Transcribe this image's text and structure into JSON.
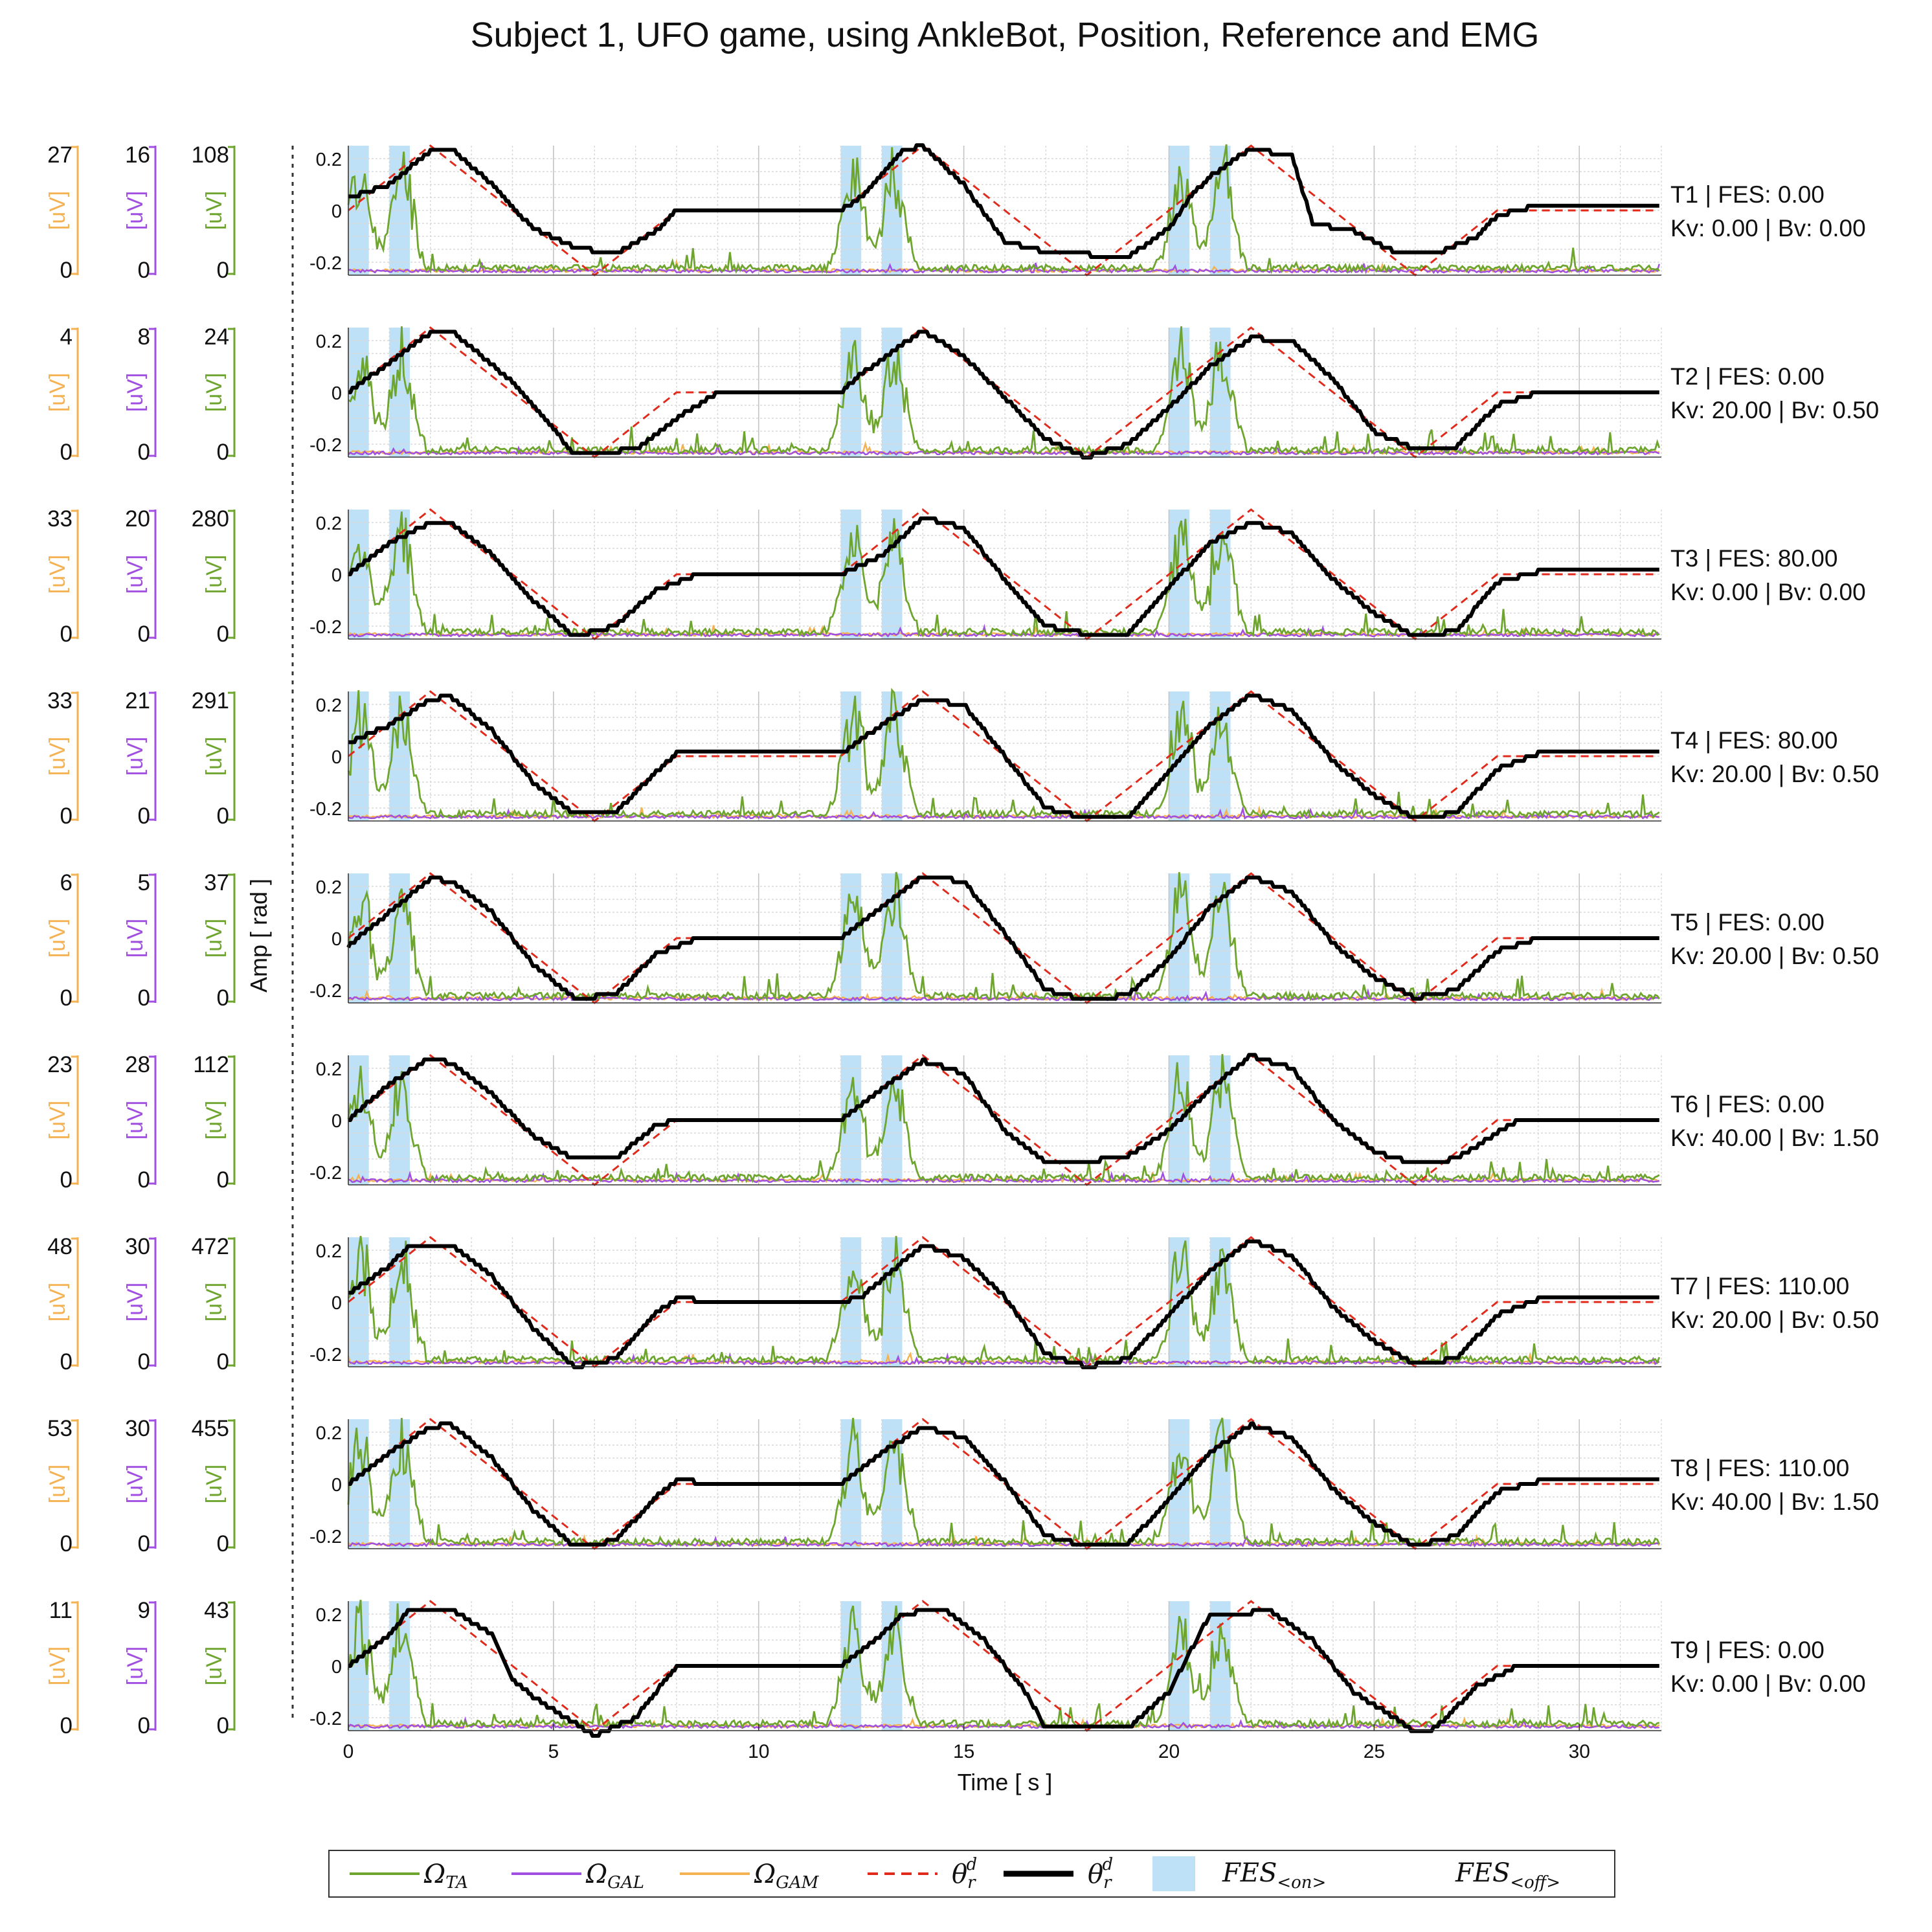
{
  "title": "Subject 1, UFO game, using AnkleBot, Position, Reference and EMG",
  "ylabel": "Amp [ rad ]",
  "xlabel": "Time [ s ]",
  "colors": {
    "ta": "#6ea52e",
    "gal": "#a14fe0",
    "gam": "#f5b253",
    "ref": "#e02a1c",
    "pos": "#000000",
    "fes": "#bfe1f8"
  },
  "chart_data": {
    "type": "line",
    "xlim": [
      0,
      32
    ],
    "ylim": [
      -0.25,
      0.25
    ],
    "xticks": [
      0,
      5,
      10,
      15,
      20,
      25,
      30
    ],
    "xtick_labels": [
      "0",
      "5",
      "10",
      "15",
      "20",
      "25",
      "30"
    ],
    "yticks": [
      0.2,
      0,
      -0.2
    ],
    "ytick_labels": [
      "0.2",
      "0",
      "-0.2"
    ],
    "grid": true,
    "legend_position": "bottom",
    "fes_on_intervals": [
      [
        0,
        0.5
      ],
      [
        1,
        1.5
      ],
      [
        12,
        12.5
      ],
      [
        13,
        13.5
      ],
      [
        20,
        20.5
      ],
      [
        21,
        21.5
      ]
    ],
    "position_keypoints": {
      "note": "approximate trajectories of the measured position",
      "T1": [
        [
          0,
          0.05
        ],
        [
          1,
          0.1
        ],
        [
          2,
          0.23
        ],
        [
          2.5,
          0.24
        ],
        [
          3.5,
          0.1
        ],
        [
          4.5,
          -0.07
        ],
        [
          5.5,
          -0.14
        ],
        [
          6.5,
          -0.17
        ],
        [
          7.5,
          -0.08
        ],
        [
          8,
          0
        ],
        [
          12,
          0
        ],
        [
          12.5,
          0.05
        ],
        [
          13.5,
          0.23
        ],
        [
          14,
          0.25
        ],
        [
          15,
          0.1
        ],
        [
          16,
          -0.12
        ],
        [
          17,
          -0.16
        ],
        [
          19,
          -0.18
        ],
        [
          20,
          -0.07
        ],
        [
          20.5,
          0.05
        ],
        [
          21,
          0.13
        ],
        [
          22,
          0.24
        ],
        [
          23,
          0.21
        ],
        [
          23.5,
          -0.05
        ],
        [
          24.5,
          -0.08
        ],
        [
          25.5,
          -0.16
        ],
        [
          26.5,
          -0.17
        ],
        [
          27.5,
          -0.1
        ],
        [
          28,
          -0.02
        ],
        [
          29,
          0.02
        ],
        [
          32,
          0.02
        ]
      ],
      "T2": [
        [
          0,
          0
        ],
        [
          2,
          0.23
        ],
        [
          2.5,
          0.24
        ],
        [
          4,
          0.04
        ],
        [
          5,
          -0.14
        ],
        [
          5.5,
          -0.24
        ],
        [
          7,
          -0.22
        ],
        [
          8,
          -0.1
        ],
        [
          9,
          0
        ],
        [
          10,
          0
        ],
        [
          12,
          0
        ],
        [
          12.5,
          0.07
        ],
        [
          14,
          0.24
        ],
        [
          15,
          0.14
        ],
        [
          16,
          -0.02
        ],
        [
          17,
          -0.18
        ],
        [
          18,
          -0.25
        ],
        [
          19,
          -0.2
        ],
        [
          20,
          -0.06
        ],
        [
          21,
          0.1
        ],
        [
          22,
          0.21
        ],
        [
          23,
          0.2
        ],
        [
          24,
          0.05
        ],
        [
          25,
          -0.15
        ],
        [
          26,
          -0.22
        ],
        [
          27,
          -0.21
        ],
        [
          28,
          -0.05
        ],
        [
          29,
          0
        ],
        [
          32,
          0
        ]
      ],
      "T3": [
        [
          0,
          0
        ],
        [
          1,
          0.12
        ],
        [
          2,
          0.2
        ],
        [
          2.5,
          0.2
        ],
        [
          3.5,
          0.08
        ],
        [
          4.5,
          -0.1
        ],
        [
          5.5,
          -0.24
        ],
        [
          6.5,
          -0.2
        ],
        [
          7.5,
          -0.06
        ],
        [
          8.5,
          0
        ],
        [
          12,
          0
        ],
        [
          13,
          0.07
        ],
        [
          14,
          0.22
        ],
        [
          15,
          0.18
        ],
        [
          16,
          -0.02
        ],
        [
          17,
          -0.2
        ],
        [
          18,
          -0.23
        ],
        [
          19,
          -0.23
        ],
        [
          20,
          -0.05
        ],
        [
          21,
          0.12
        ],
        [
          22,
          0.2
        ],
        [
          23,
          0.16
        ],
        [
          24,
          -0.02
        ],
        [
          25,
          -0.15
        ],
        [
          26,
          -0.24
        ],
        [
          27,
          -0.22
        ],
        [
          28,
          -0.03
        ],
        [
          29,
          0.01
        ],
        [
          32,
          0.01
        ]
      ],
      "T4": [
        [
          0,
          0.05
        ],
        [
          1,
          0.12
        ],
        [
          2,
          0.22
        ],
        [
          2.5,
          0.23
        ],
        [
          3.5,
          0.1
        ],
        [
          4.5,
          -0.1
        ],
        [
          5.5,
          -0.22
        ],
        [
          6.5,
          -0.22
        ],
        [
          7.5,
          -0.06
        ],
        [
          8,
          0.01
        ],
        [
          12,
          0.01
        ],
        [
          13,
          0.12
        ],
        [
          14,
          0.22
        ],
        [
          15,
          0.2
        ],
        [
          16,
          0
        ],
        [
          17,
          -0.2
        ],
        [
          18,
          -0.24
        ],
        [
          19,
          -0.24
        ],
        [
          20,
          -0.06
        ],
        [
          21,
          0.12
        ],
        [
          22,
          0.24
        ],
        [
          23,
          0.18
        ],
        [
          24,
          -0.02
        ],
        [
          25,
          -0.15
        ],
        [
          26,
          -0.24
        ],
        [
          27,
          -0.22
        ],
        [
          28,
          -0.05
        ],
        [
          29,
          0.01
        ],
        [
          32,
          0.01
        ]
      ],
      "T5": [
        [
          0,
          -0.03
        ],
        [
          1,
          0.1
        ],
        [
          2,
          0.23
        ],
        [
          2.5,
          0.22
        ],
        [
          3.5,
          0.1
        ],
        [
          4.5,
          -0.1
        ],
        [
          5.5,
          -0.23
        ],
        [
          6.5,
          -0.22
        ],
        [
          7.5,
          -0.06
        ],
        [
          8.5,
          0
        ],
        [
          12,
          0
        ],
        [
          13,
          0.12
        ],
        [
          14,
          0.24
        ],
        [
          15,
          0.22
        ],
        [
          16,
          0.02
        ],
        [
          17,
          -0.2
        ],
        [
          18,
          -0.24
        ],
        [
          19,
          -0.22
        ],
        [
          20,
          -0.08
        ],
        [
          21,
          0.12
        ],
        [
          22,
          0.24
        ],
        [
          23,
          0.18
        ],
        [
          24,
          -0.02
        ],
        [
          25,
          -0.15
        ],
        [
          26,
          -0.23
        ],
        [
          27,
          -0.2
        ],
        [
          28,
          -0.05
        ],
        [
          29,
          0
        ],
        [
          32,
          0
        ]
      ],
      "T6": [
        [
          0,
          0
        ],
        [
          1,
          0.14
        ],
        [
          2,
          0.24
        ],
        [
          2.5,
          0.22
        ],
        [
          3.5,
          0.1
        ],
        [
          4.5,
          -0.06
        ],
        [
          5.5,
          -0.15
        ],
        [
          6.5,
          -0.15
        ],
        [
          7.5,
          -0.02
        ],
        [
          8,
          0
        ],
        [
          12,
          0
        ],
        [
          13,
          0.12
        ],
        [
          14,
          0.23
        ],
        [
          15,
          0.18
        ],
        [
          16,
          -0.04
        ],
        [
          17,
          -0.16
        ],
        [
          18,
          -0.16
        ],
        [
          19,
          -0.14
        ],
        [
          20,
          -0.04
        ],
        [
          21,
          0.12
        ],
        [
          22,
          0.25
        ],
        [
          23,
          0.2
        ],
        [
          24,
          0
        ],
        [
          25,
          -0.12
        ],
        [
          26,
          -0.17
        ],
        [
          27,
          -0.15
        ],
        [
          28,
          -0.05
        ],
        [
          28.5,
          0
        ],
        [
          32,
          0
        ]
      ],
      "T7": [
        [
          0,
          0.03
        ],
        [
          1,
          0.14
        ],
        [
          1.5,
          0.22
        ],
        [
          2.5,
          0.22
        ],
        [
          3.5,
          0.1
        ],
        [
          4.5,
          -0.1
        ],
        [
          5.5,
          -0.25
        ],
        [
          6.5,
          -0.22
        ],
        [
          7.5,
          -0.04
        ],
        [
          8,
          0.01
        ],
        [
          12,
          0
        ],
        [
          12.5,
          0.02
        ],
        [
          14,
          0.22
        ],
        [
          15,
          0.17
        ],
        [
          16,
          0.02
        ],
        [
          17,
          -0.2
        ],
        [
          18,
          -0.25
        ],
        [
          19,
          -0.22
        ],
        [
          20,
          -0.05
        ],
        [
          21,
          0.12
        ],
        [
          22,
          0.24
        ],
        [
          23,
          0.18
        ],
        [
          24,
          -0.02
        ],
        [
          25,
          -0.15
        ],
        [
          26,
          -0.24
        ],
        [
          27,
          -0.22
        ],
        [
          28,
          -0.05
        ],
        [
          29,
          0.01
        ],
        [
          32,
          0.01
        ]
      ],
      "T8": [
        [
          0,
          0
        ],
        [
          1,
          0.12
        ],
        [
          2,
          0.22
        ],
        [
          2.5,
          0.23
        ],
        [
          3.5,
          0.1
        ],
        [
          4.5,
          -0.1
        ],
        [
          5.5,
          -0.24
        ],
        [
          6.5,
          -0.22
        ],
        [
          7.5,
          -0.05
        ],
        [
          8,
          0.01
        ],
        [
          12,
          0
        ],
        [
          13,
          0.12
        ],
        [
          14,
          0.22
        ],
        [
          15,
          0.18
        ],
        [
          16,
          0.01
        ],
        [
          17,
          -0.2
        ],
        [
          18,
          -0.24
        ],
        [
          19,
          -0.23
        ],
        [
          20,
          -0.06
        ],
        [
          21,
          0.12
        ],
        [
          22,
          0.23
        ],
        [
          23,
          0.18
        ],
        [
          24,
          -0.02
        ],
        [
          25,
          -0.15
        ],
        [
          26,
          -0.24
        ],
        [
          27,
          -0.2
        ],
        [
          28,
          -0.03
        ],
        [
          29,
          0.01
        ],
        [
          32,
          0.01
        ]
      ],
      "T9": [
        [
          0,
          0
        ],
        [
          1,
          0.12
        ],
        [
          1.5,
          0.22
        ],
        [
          2.5,
          0.22
        ],
        [
          3.5,
          0.12
        ],
        [
          4,
          -0.05
        ],
        [
          4.5,
          -0.12
        ],
        [
          5.5,
          -0.22
        ],
        [
          6,
          -0.27
        ],
        [
          7,
          -0.2
        ],
        [
          8,
          0
        ],
        [
          9,
          0
        ],
        [
          12,
          0
        ],
        [
          13,
          0.12
        ],
        [
          13.5,
          0.2
        ],
        [
          14.5,
          0.22
        ],
        [
          15.5,
          0.1
        ],
        [
          16.5,
          -0.1
        ],
        [
          17,
          -0.24
        ],
        [
          19,
          -0.24
        ],
        [
          20,
          -0.1
        ],
        [
          20.5,
          0.05
        ],
        [
          21,
          0.2
        ],
        [
          22.5,
          0.21
        ],
        [
          23.5,
          0.1
        ],
        [
          24.5,
          -0.1
        ],
        [
          25.5,
          -0.2
        ],
        [
          26,
          -0.26
        ],
        [
          26.5,
          -0.24
        ],
        [
          27.5,
          -0.08
        ],
        [
          28.5,
          0
        ],
        [
          32,
          0
        ]
      ]
    },
    "panels": [
      {
        "trial": "T1",
        "label1": "T1 | FES: 0.00",
        "label2": "Kv: 0.00 | Bv: 0.00",
        "gam_max": "27",
        "gal_max": "16",
        "ta_max": "108",
        "min": "0"
      },
      {
        "trial": "T2",
        "label1": "T2 | FES: 0.00",
        "label2": "Kv: 20.00 | Bv: 0.50",
        "gam_max": "4",
        "gal_max": "8",
        "ta_max": "24",
        "min": "0"
      },
      {
        "trial": "T3",
        "label1": "T3 | FES: 80.00",
        "label2": "Kv: 0.00 | Bv: 0.00",
        "gam_max": "33",
        "gal_max": "20",
        "ta_max": "280",
        "min": "0"
      },
      {
        "trial": "T4",
        "label1": "T4 | FES: 80.00",
        "label2": "Kv: 20.00 | Bv: 0.50",
        "gam_max": "33",
        "gal_max": "21",
        "ta_max": "291",
        "min": "0"
      },
      {
        "trial": "T5",
        "label1": "T5 | FES: 0.00",
        "label2": "Kv: 20.00 | Bv: 0.50",
        "gam_max": "6",
        "gal_max": "5",
        "ta_max": "37",
        "min": "0"
      },
      {
        "trial": "T6",
        "label1": "T6 | FES: 0.00",
        "label2": "Kv: 40.00 | Bv: 1.50",
        "gam_max": "23",
        "gal_max": "28",
        "ta_max": "112",
        "min": "0"
      },
      {
        "trial": "T7",
        "label1": "T7 | FES: 110.00",
        "label2": "Kv: 20.00 | Bv: 0.50",
        "gam_max": "48",
        "gal_max": "30",
        "ta_max": "472",
        "min": "0"
      },
      {
        "trial": "T8",
        "label1": "T8 | FES: 110.00",
        "label2": "Kv: 40.00 | Bv: 1.50",
        "gam_max": "53",
        "gal_max": "30",
        "ta_max": "455",
        "min": "0"
      },
      {
        "trial": "T9",
        "label1": "T9 | FES: 0.00",
        "label2": "Kv: 0.00 | Bv: 0.00",
        "gam_max": "11",
        "gal_max": "9",
        "ta_max": "43",
        "min": "0"
      }
    ],
    "unit_label": "[uV]",
    "legend": [
      "ΩTA",
      "ΩGAL",
      "ΩGAM",
      "θrd",
      "θrd",
      "FES<on>",
      "FES<off>"
    ]
  }
}
